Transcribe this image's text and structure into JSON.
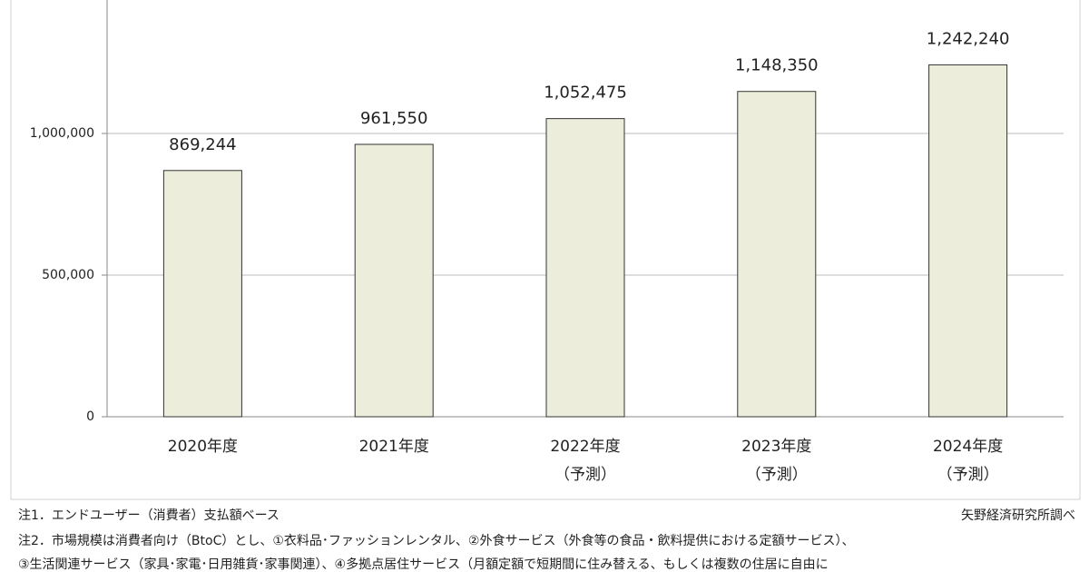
{
  "chart_data": {
    "type": "bar",
    "categories": [
      "2020年度",
      "2021年度",
      "2022年度",
      "2023年度",
      "2024年度"
    ],
    "category_notes": [
      null,
      null,
      "（予測）",
      "（予測）",
      "（予測）"
    ],
    "values": [
      869244,
      961550,
      1052475,
      1148350,
      1242240
    ],
    "value_labels": [
      "869,244",
      "961,550",
      "1,052,475",
      "1,148,350",
      "1,242,240"
    ],
    "color": "#ecedda",
    "ylim": [
      0,
      1500000
    ],
    "yticks": [
      0,
      {
        "value": 500000,
        "label": "500,000"
      },
      {
        "value": 1000000,
        "label": "1,000,000"
      }
    ],
    "grid": true,
    "notes": [
      "注1．エンドユーザー（消費者）支払額ベース",
      "注2．市場規模は消費者向け（BtoC）とし、①衣料品･ファッションレンタル、②外食サービス（外食等の食品・飲料提供における定額サービス）、",
      "③生活関連サービス（家具･家電･日用雑貨･家事関連）、④多拠点居住サービス（月額定額で短期間に住み替える、もしくは複数の住居に自由に"
    ],
    "source": "矢野経済研究所調べ"
  }
}
